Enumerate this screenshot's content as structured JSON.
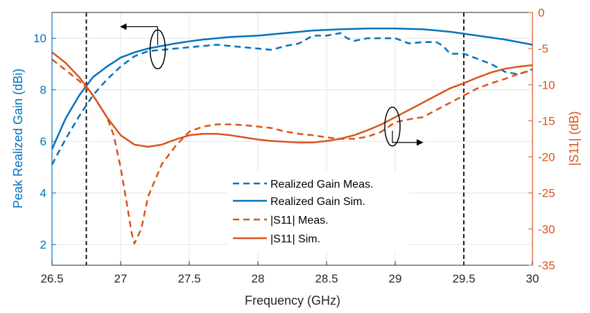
{
  "chart_data": {
    "type": "line",
    "xlabel": "Frequency (GHz)",
    "ylabel_left": "Peak Realized Gain (dBi)",
    "ylabel_right": "|S11| (dB)",
    "xlim": [
      26.5,
      30
    ],
    "ylim_left": [
      1.2,
      11
    ],
    "ylim_right": [
      -35,
      0
    ],
    "xticks": [
      "26.5",
      "27",
      "27.5",
      "28",
      "28.5",
      "29",
      "29.5",
      "30"
    ],
    "yticks_left": [
      "2",
      "4",
      "6",
      "8",
      "10"
    ],
    "yticks_right": [
      "0",
      "-5",
      "-10",
      "-15",
      "-20",
      "-25",
      "-30",
      "-35"
    ],
    "grid": true,
    "vertical_markers": [
      26.75,
      29.5
    ],
    "colors": {
      "gain": "#0072BD",
      "s11": "#D95319",
      "grid": "#e6e6e6"
    },
    "legend_position": "center-bottom",
    "series": [
      {
        "name": "Realized Gain Meas.",
        "axis": "left",
        "style": "dashed",
        "color": "#0072BD",
        "x": [
          26.5,
          26.6,
          26.7,
          26.8,
          26.9,
          27.0,
          27.1,
          27.2,
          27.3,
          27.4,
          27.5,
          27.6,
          27.7,
          27.8,
          27.9,
          28.0,
          28.1,
          28.2,
          28.3,
          28.4,
          28.5,
          28.6,
          28.65,
          28.7,
          28.8,
          28.9,
          29.0,
          29.1,
          29.2,
          29.3,
          29.35,
          29.4,
          29.5,
          29.6,
          29.7,
          29.8,
          29.9,
          30.0
        ],
        "y": [
          5.1,
          6.1,
          7.0,
          7.8,
          8.4,
          8.9,
          9.3,
          9.5,
          9.55,
          9.6,
          9.65,
          9.7,
          9.75,
          9.7,
          9.65,
          9.6,
          9.55,
          9.7,
          9.8,
          10.1,
          10.1,
          10.2,
          10.0,
          9.9,
          10.0,
          10.0,
          10.0,
          9.8,
          9.85,
          9.85,
          9.7,
          9.4,
          9.4,
          9.2,
          9.0,
          8.7,
          8.6,
          8.8
        ]
      },
      {
        "name": "Realized Gain Sim.",
        "axis": "left",
        "style": "solid",
        "color": "#0072BD",
        "x": [
          26.5,
          26.6,
          26.7,
          26.8,
          26.9,
          27.0,
          27.1,
          27.2,
          27.3,
          27.4,
          27.5,
          27.6,
          27.8,
          28.0,
          28.2,
          28.4,
          28.6,
          28.8,
          29.0,
          29.2,
          29.4,
          29.6,
          29.8,
          30.0
        ],
        "y": [
          5.7,
          6.9,
          7.8,
          8.5,
          8.9,
          9.25,
          9.45,
          9.6,
          9.7,
          9.8,
          9.88,
          9.95,
          10.05,
          10.1,
          10.2,
          10.3,
          10.35,
          10.38,
          10.38,
          10.35,
          10.25,
          10.1,
          9.95,
          9.75
        ]
      },
      {
        "name": "|S11| Meas.",
        "axis": "right",
        "style": "dashed",
        "color": "#D95319",
        "x": [
          26.5,
          26.6,
          26.7,
          26.8,
          26.9,
          26.95,
          27.0,
          27.05,
          27.08,
          27.1,
          27.15,
          27.2,
          27.3,
          27.4,
          27.5,
          27.6,
          27.7,
          27.8,
          27.9,
          28.0,
          28.1,
          28.2,
          28.3,
          28.4,
          28.5,
          28.6,
          28.7,
          28.8,
          28.9,
          29.0,
          29.1,
          29.2,
          29.3,
          29.4,
          29.5,
          29.6,
          29.7,
          29.8,
          29.9,
          30.0
        ],
        "y": [
          -6.5,
          -8.0,
          -9.5,
          -11.5,
          -14.5,
          -17.0,
          -21.5,
          -27.0,
          -30.5,
          -32.0,
          -30.0,
          -25.5,
          -21.0,
          -18.5,
          -16.5,
          -15.8,
          -15.5,
          -15.5,
          -15.6,
          -15.8,
          -16.0,
          -16.5,
          -16.8,
          -17.0,
          -17.3,
          -17.5,
          -17.5,
          -17.2,
          -16.5,
          -15.2,
          -14.8,
          -14.5,
          -13.5,
          -12.5,
          -11.5,
          -10.5,
          -9.8,
          -9.2,
          -8.5,
          -8.0
        ]
      },
      {
        "name": "|S11| Sim.",
        "axis": "right",
        "style": "solid",
        "color": "#D95319",
        "x": [
          26.5,
          26.6,
          26.7,
          26.8,
          26.9,
          27.0,
          27.1,
          27.2,
          27.3,
          27.4,
          27.5,
          27.6,
          27.7,
          27.8,
          27.9,
          28.0,
          28.1,
          28.2,
          28.3,
          28.4,
          28.5,
          28.6,
          28.7,
          28.8,
          28.9,
          29.0,
          29.1,
          29.2,
          29.3,
          29.4,
          29.5,
          29.6,
          29.7,
          29.8,
          29.9,
          30.0
        ],
        "y": [
          -5.5,
          -7.0,
          -9.0,
          -11.5,
          -14.5,
          -17.0,
          -18.3,
          -18.6,
          -18.3,
          -17.6,
          -17.0,
          -16.8,
          -16.8,
          -17.0,
          -17.3,
          -17.6,
          -17.8,
          -17.9,
          -18.0,
          -18.0,
          -17.8,
          -17.5,
          -17.0,
          -16.3,
          -15.5,
          -14.5,
          -13.5,
          -12.5,
          -11.5,
          -10.5,
          -9.8,
          -9.0,
          -8.3,
          -7.8,
          -7.5,
          -7.3
        ]
      }
    ],
    "annotations": [
      {
        "type": "ellipse-arrow",
        "target_axis": "left",
        "x": 27.27,
        "y": 9.57,
        "arrow_to_x": 27.0,
        "arrow_to_y": 10.45
      },
      {
        "type": "ellipse-arrow",
        "target_axis": "right",
        "x": 28.98,
        "y": -15.8,
        "arrow_to_x": 29.2,
        "arrow_to_y": -18.0
      }
    ]
  }
}
